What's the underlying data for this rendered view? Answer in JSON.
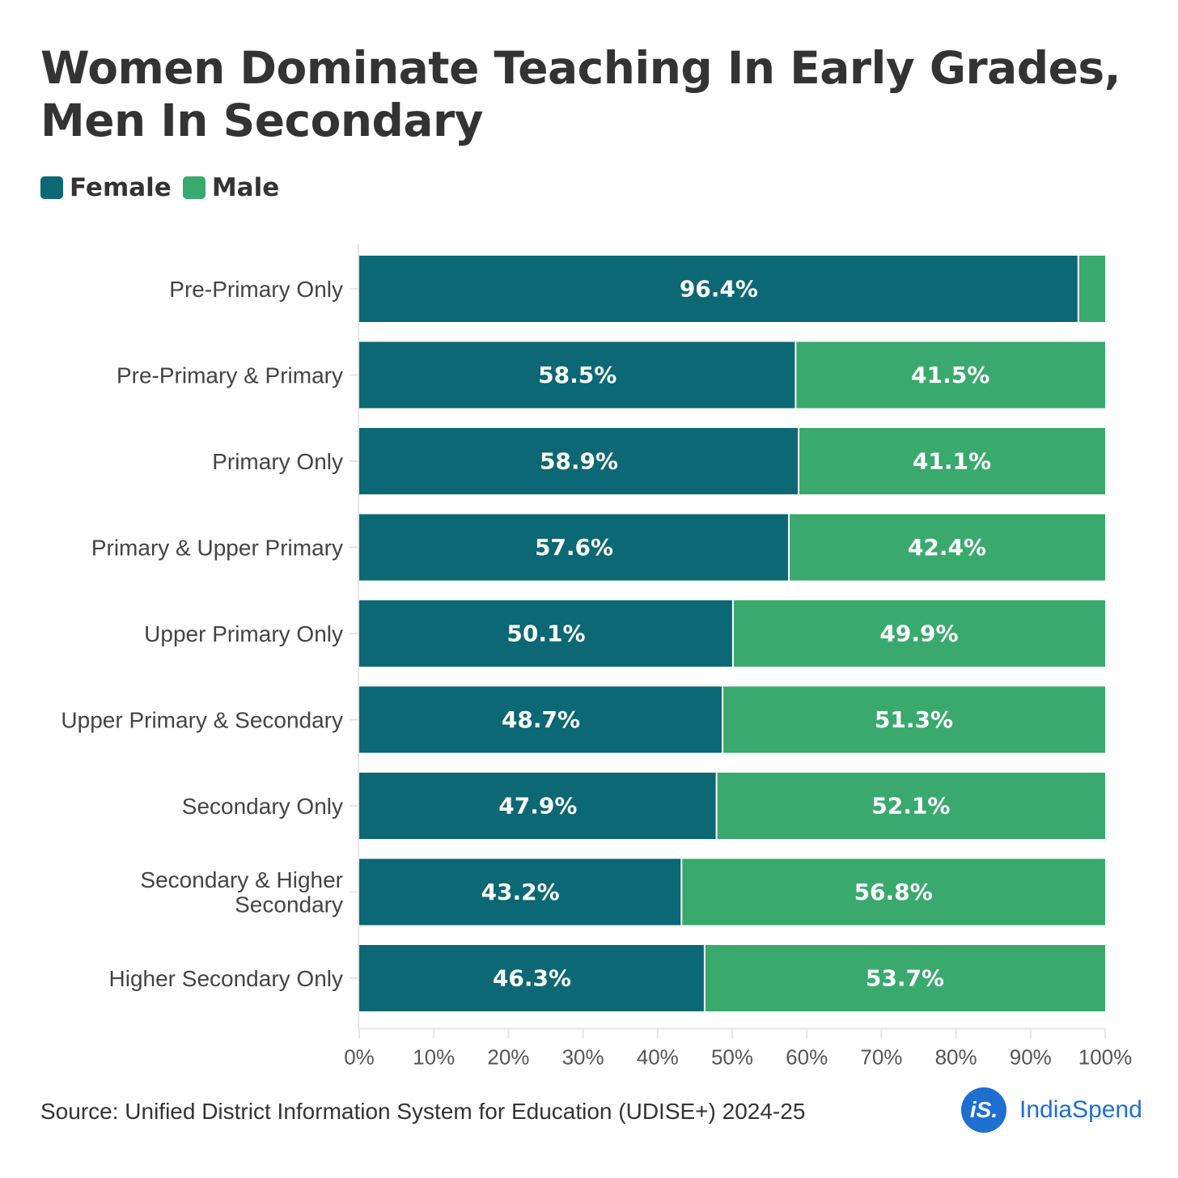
{
  "title": "Women Dominate Teaching In Early Grades, Men In Secondary",
  "legend": [
    {
      "label": "Female",
      "color": "#0b6874"
    },
    {
      "label": "Male",
      "color": "#3aa96e"
    }
  ],
  "source": "Source: Unified District Information System for Education (UDISE+) 2024-25",
  "brand": {
    "logo_text": "iS.",
    "name": "IndiaSpend",
    "color": "#1e6fd0"
  },
  "chart_data": {
    "type": "bar",
    "orientation": "horizontal",
    "stacked": true,
    "categories": [
      "Pre-Primary Only",
      "Pre-Primary & Primary",
      "Primary Only",
      "Primary & Upper Primary",
      "Upper Primary Only",
      "Upper Primary & Secondary",
      "Secondary Only",
      "Secondary & Higher Secondary",
      "Higher Secondary Only"
    ],
    "series": [
      {
        "name": "Female",
        "color": "#0b6874",
        "values": [
          96.4,
          58.5,
          58.9,
          57.6,
          50.1,
          48.7,
          47.9,
          43.2,
          46.3
        ],
        "labels": [
          "96.4%",
          "58.5%",
          "58.9%",
          "57.6%",
          "50.1%",
          "48.7%",
          "47.9%",
          "43.2%",
          "46.3%"
        ]
      },
      {
        "name": "Male",
        "color": "#3aa96e",
        "values": [
          3.6,
          41.5,
          41.1,
          42.4,
          49.9,
          51.3,
          52.1,
          56.8,
          53.7
        ],
        "labels": [
          "",
          "41.5%",
          "41.1%",
          "42.4%",
          "49.9%",
          "51.3%",
          "52.1%",
          "56.8%",
          "53.7%"
        ]
      }
    ],
    "xlim": [
      0,
      100
    ],
    "xticks": [
      "0%",
      "10%",
      "20%",
      "30%",
      "40%",
      "50%",
      "60%",
      "70%",
      "80%",
      "90%",
      "100%"
    ],
    "xlabel": "",
    "ylabel": "",
    "grid": false,
    "legend_position": "top-left"
  }
}
